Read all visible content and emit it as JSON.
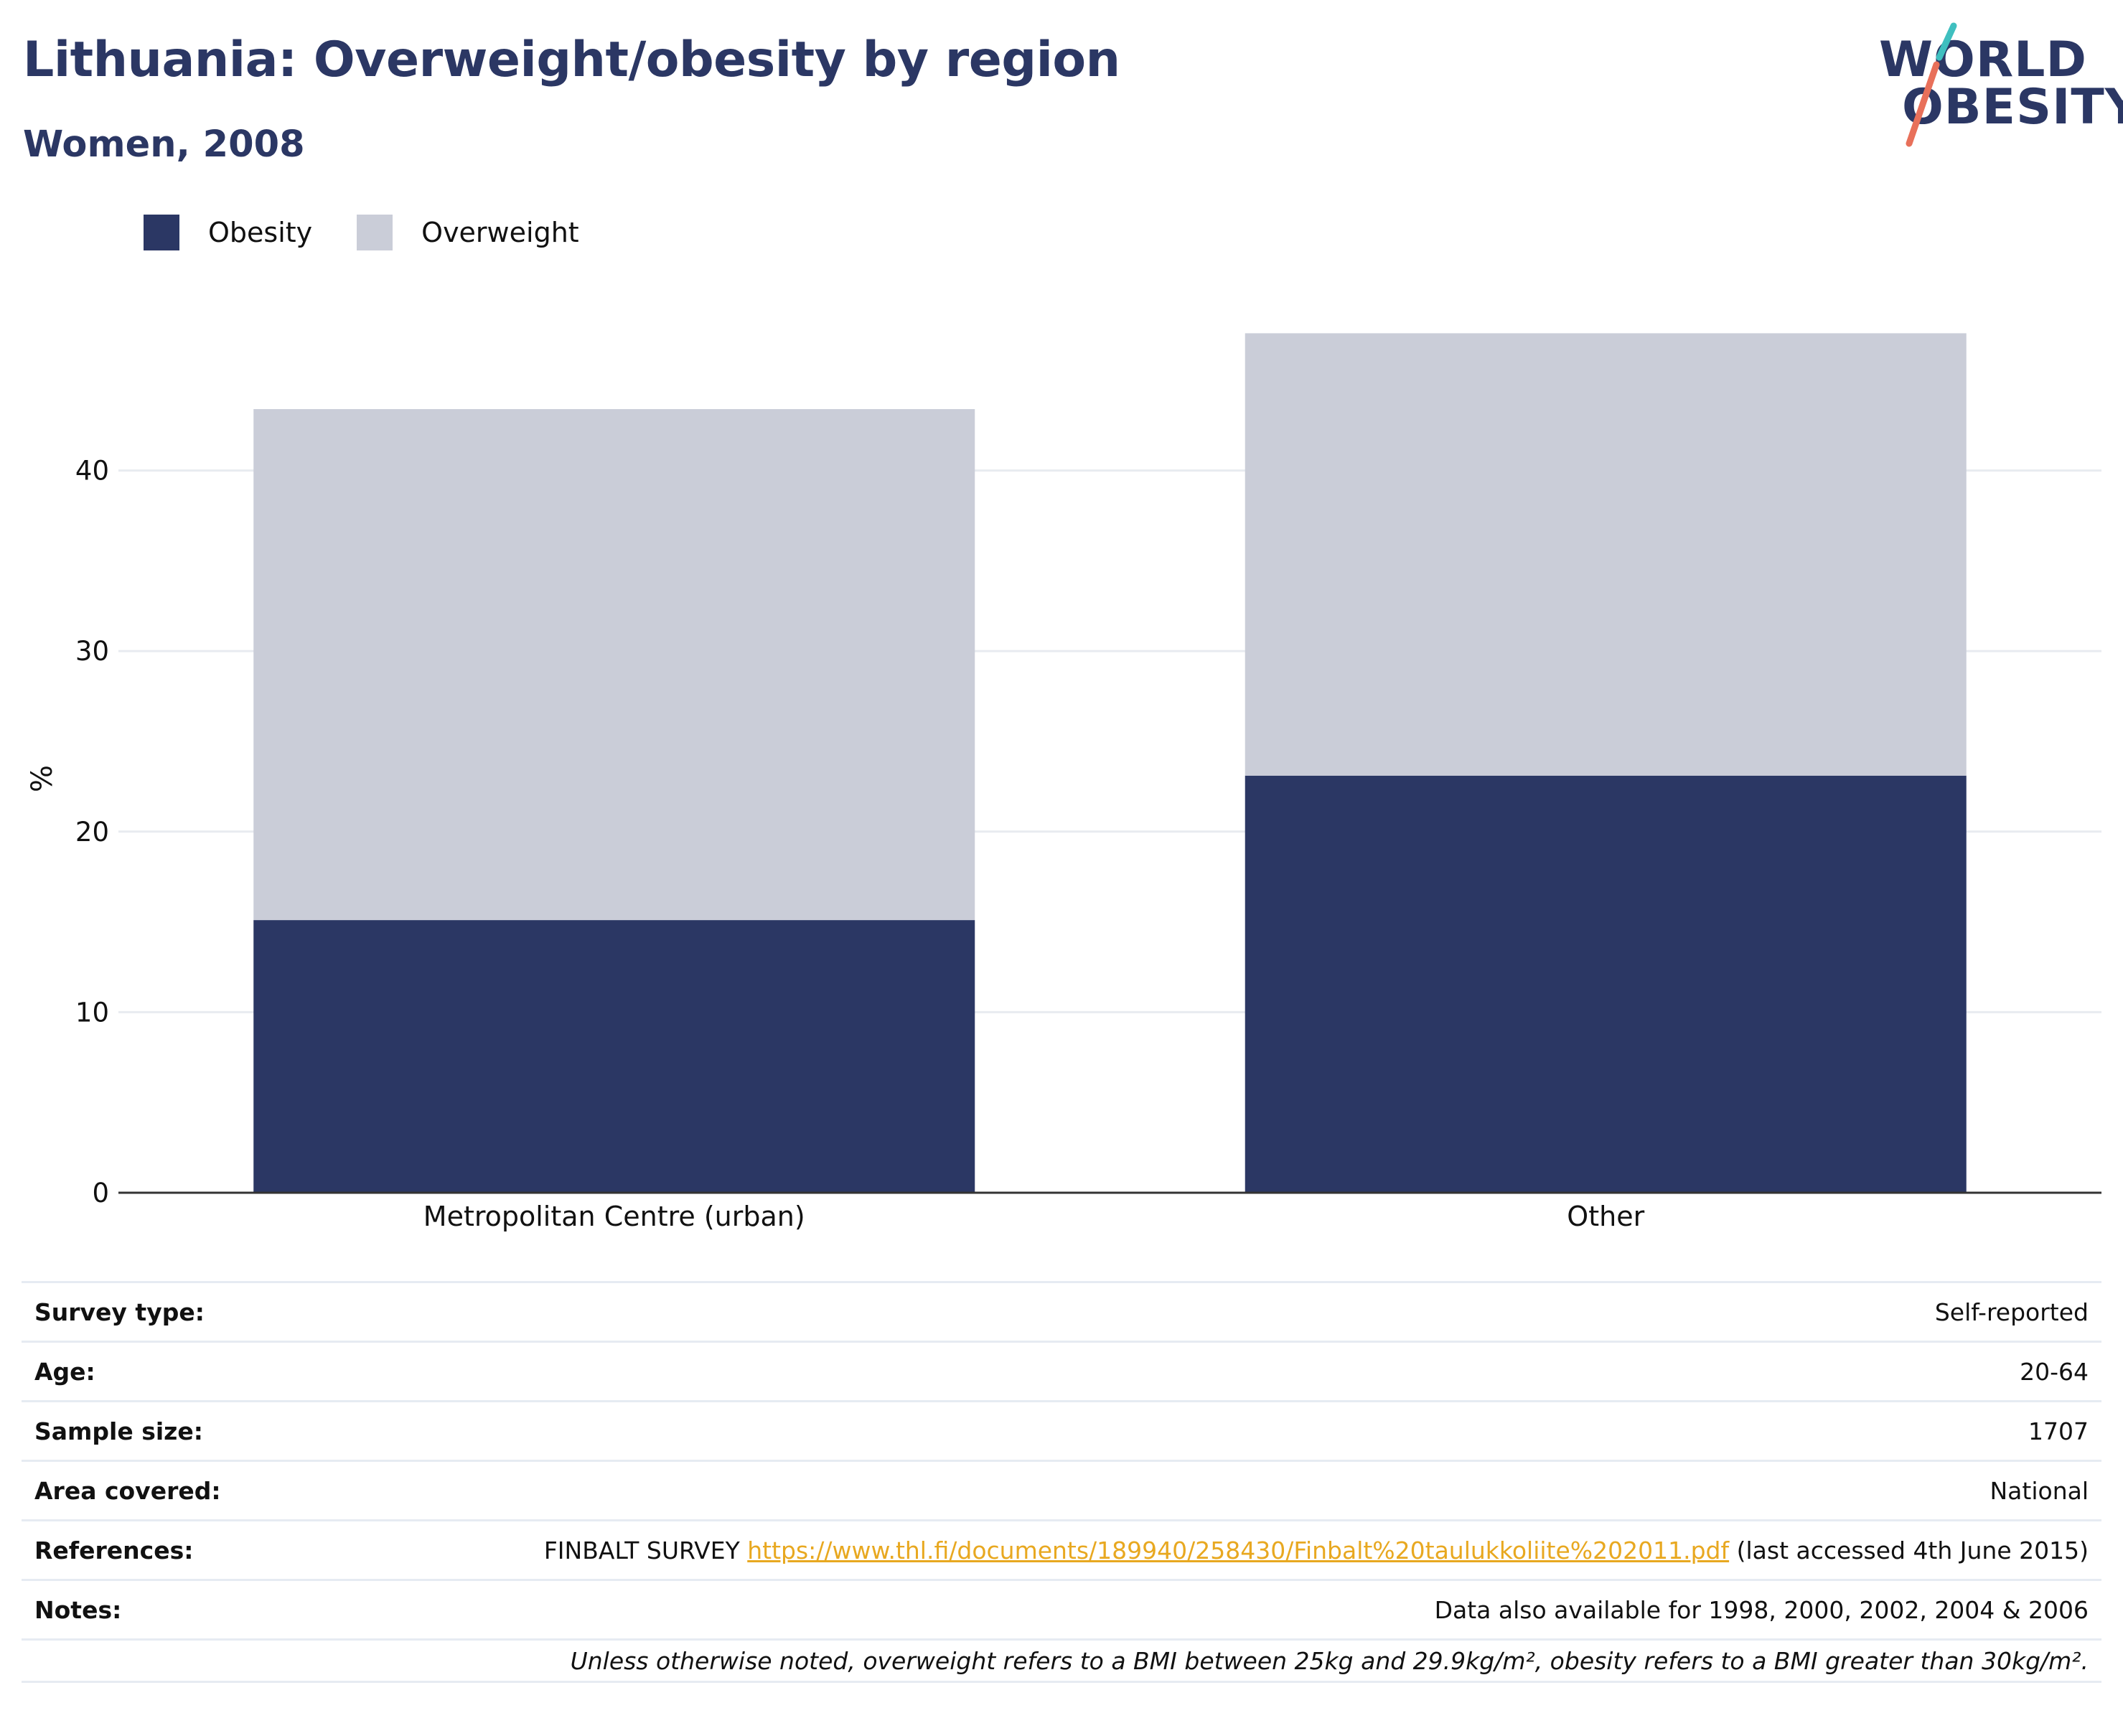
{
  "header": {
    "title": "Lithuania: Overweight/obesity by region",
    "subtitle": "Women, 2008"
  },
  "logo": {
    "line1": "WORLD",
    "line2": "OBESITY",
    "accent_colors": [
      "#3fbfbf",
      "#e8705a"
    ]
  },
  "legend": [
    {
      "label": "Obesity",
      "color": "#2b3764"
    },
    {
      "label": "Overweight",
      "color": "#cacdd8"
    }
  ],
  "chart_data": {
    "type": "bar",
    "stacked": true,
    "categories": [
      "Metropolitan Centre (urban)",
      "Other"
    ],
    "series": [
      {
        "name": "Obesity",
        "color": "#2b3764",
        "values": [
          15.1,
          23.1
        ]
      },
      {
        "name": "Overweight",
        "color": "#cacdd8",
        "values": [
          28.3,
          24.5
        ]
      }
    ],
    "ylabel": "%",
    "ylim": [
      0,
      50
    ],
    "yticks": [
      0,
      10,
      20,
      30,
      40
    ],
    "grid": true,
    "legend_position": "top-left"
  },
  "info_table": [
    {
      "key": "Survey type:",
      "value": "Self-reported"
    },
    {
      "key": "Age:",
      "value": "20-64"
    },
    {
      "key": "Sample size:",
      "value": "1707"
    },
    {
      "key": "Area covered:",
      "value": "National"
    },
    {
      "key": "References:",
      "value_prefix": "FINBALT SURVEY ",
      "link": "https://www.thl.fi/documents/189940/258430/Finbalt%20taulukkoliite%202011.pdf",
      "value_suffix": " (last accessed 4th June 2015)"
    },
    {
      "key": "Notes:",
      "value": "Data also available for 1998, 2000, 2002, 2004 & 2006"
    }
  ],
  "footnote": "Unless otherwise noted, overweight refers to a BMI between 25kg and 29.9kg/m², obesity refers to a BMI greater than 30kg/m²."
}
